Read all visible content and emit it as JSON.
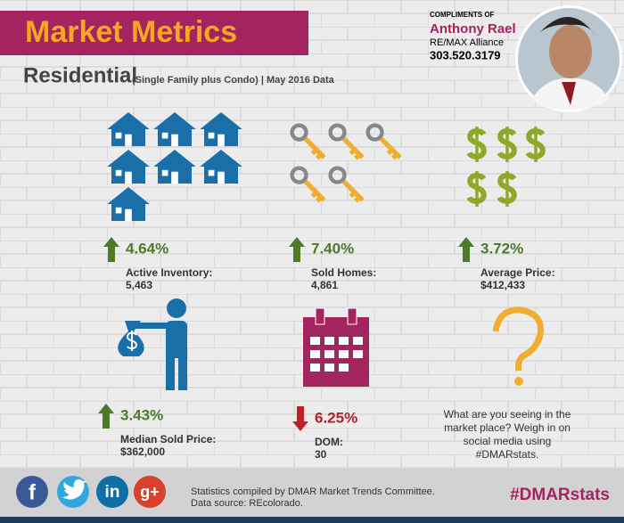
{
  "header": {
    "title": "Market Metrics",
    "subtitle": "Residential",
    "qualifier": "(Single Family plus Condo) | May 2016 Data"
  },
  "agent": {
    "compliments": "COMPLIMENTS OF",
    "name": "Anthony Rael",
    "company": "RE/MAX Alliance",
    "phone": "303.520.3179"
  },
  "metrics": [
    {
      "change": "4.64%",
      "label": "Active Inventory:",
      "value": "5,463",
      "direction": "up"
    },
    {
      "change": "7.40%",
      "label": "Sold Homes:",
      "value": "4,861",
      "direction": "up"
    },
    {
      "change": "3.72%",
      "label": "Average Price:",
      "value": "$412,433",
      "direction": "up"
    },
    {
      "change": "3.43%",
      "label": "Median Sold Price:",
      "value": "$362,000",
      "direction": "up"
    },
    {
      "change": "6.25%",
      "label": "DOM:",
      "value": "30",
      "direction": "down"
    }
  ],
  "question": [
    "What are you seeing in the",
    "market place? Weigh in on",
    "social media using",
    "#DMARstats."
  ],
  "footer": {
    "social": {
      "facebook": "f",
      "linkedin": "in",
      "googleplus": "g+"
    },
    "stats": "Statistics compiled by DMAR Market Trends Committee.",
    "source": "Data source: REcolorado.",
    "hashtag": "#DMARstats"
  }
}
